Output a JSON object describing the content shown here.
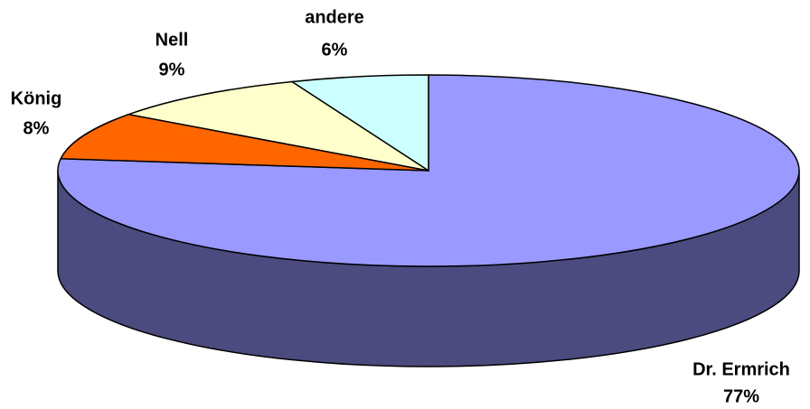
{
  "chart_data": {
    "type": "pie",
    "categories": [
      "Dr. Ermrich",
      "König",
      "Nell",
      "andere"
    ],
    "values": [
      77,
      8,
      9,
      6
    ],
    "value_labels": [
      "77%",
      "8%",
      "9%",
      "6%"
    ],
    "colors": [
      "#9999ff",
      "#ff6600",
      "#ffffcc",
      "#ccffff"
    ],
    "side_color": "#4b4b80"
  }
}
